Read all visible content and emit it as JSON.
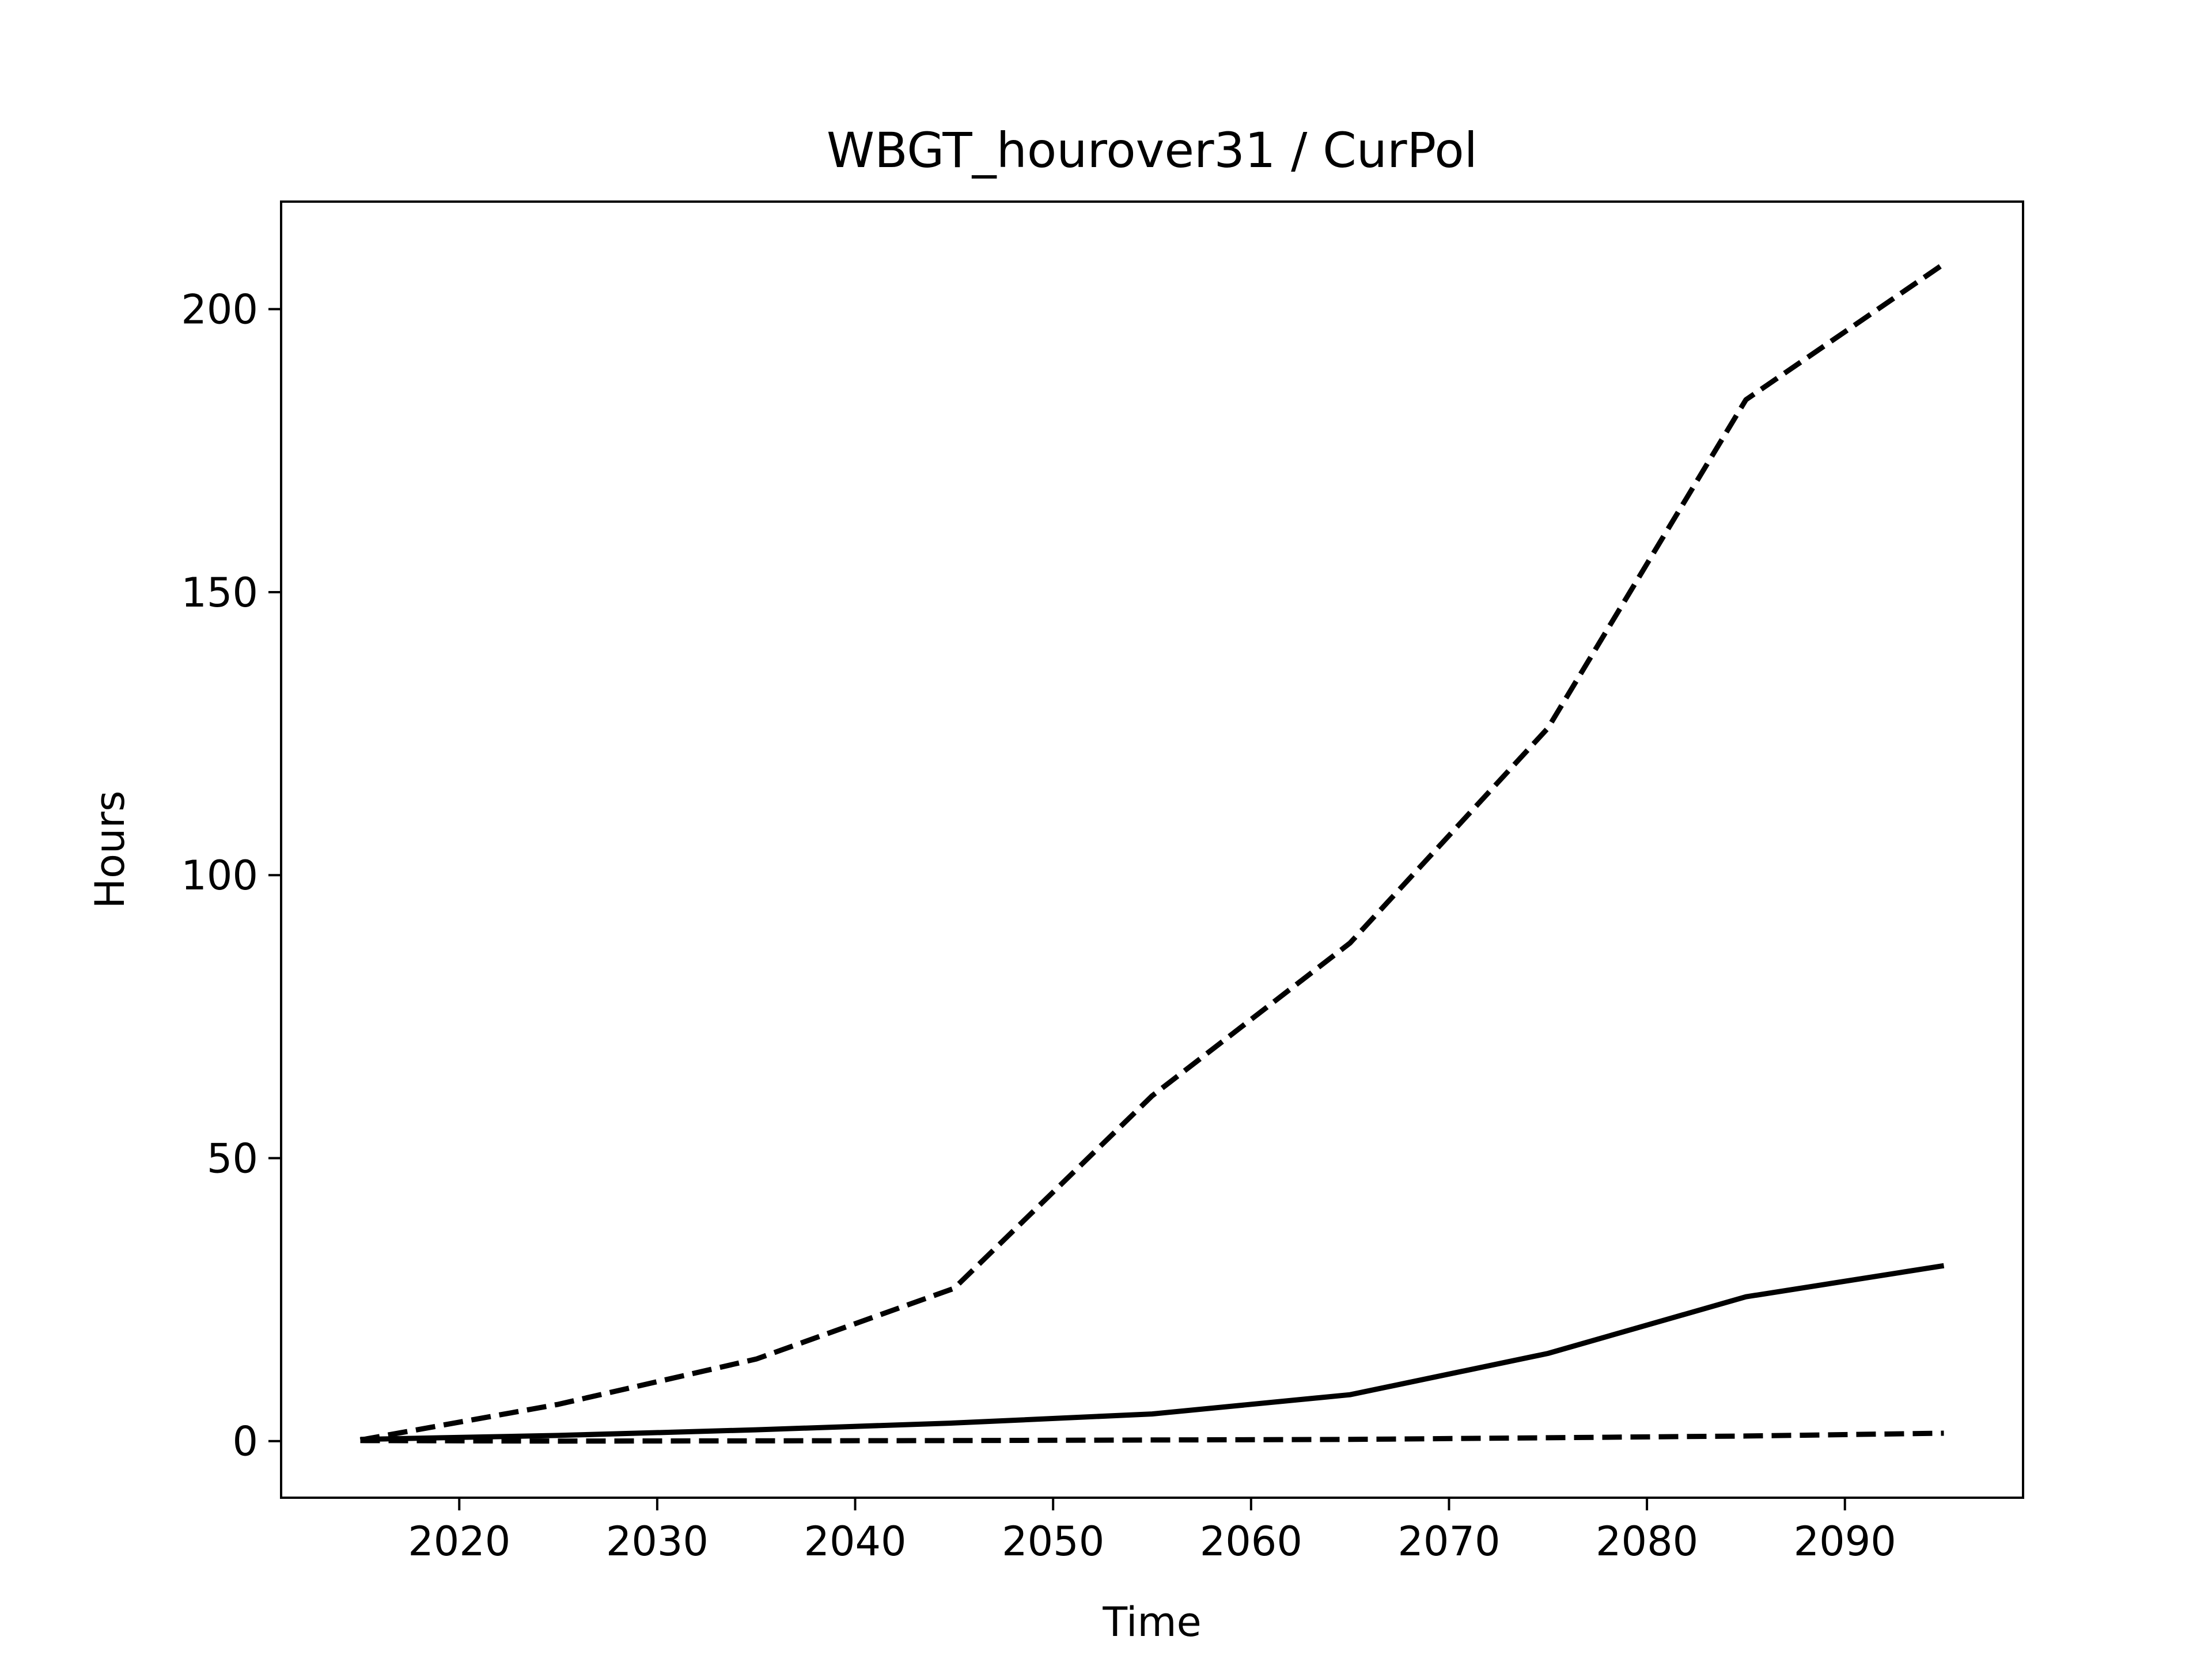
{
  "chart_data": {
    "type": "line",
    "title": "WBGT_hourover31 / CurPol",
    "xlabel": "Time",
    "ylabel": "Hours",
    "xlim": [
      2011,
      2099
    ],
    "ylim": [
      -10,
      219
    ],
    "xticks": [
      2020,
      2030,
      2040,
      2050,
      2060,
      2070,
      2080,
      2090
    ],
    "yticks": [
      0,
      50,
      100,
      150,
      200
    ],
    "grid": false,
    "x": [
      2015,
      2025,
      2035,
      2045,
      2055,
      2065,
      2075,
      2085,
      2095
    ],
    "series": [
      {
        "style": "dashed",
        "color": "#000000",
        "values": [
          0.2,
          6.5,
          14.5,
          27,
          61,
          88,
          126,
          184,
          208
        ]
      },
      {
        "style": "solid",
        "color": "#000000",
        "values": [
          0.3,
          1.0,
          2.0,
          3.2,
          4.8,
          8.2,
          15.5,
          25.5,
          31
        ]
      },
      {
        "style": "dashed",
        "color": "#000000",
        "values": [
          0.1,
          0.0,
          0.05,
          0.1,
          0.2,
          0.3,
          0.6,
          0.9,
          1.4
        ]
      }
    ]
  }
}
